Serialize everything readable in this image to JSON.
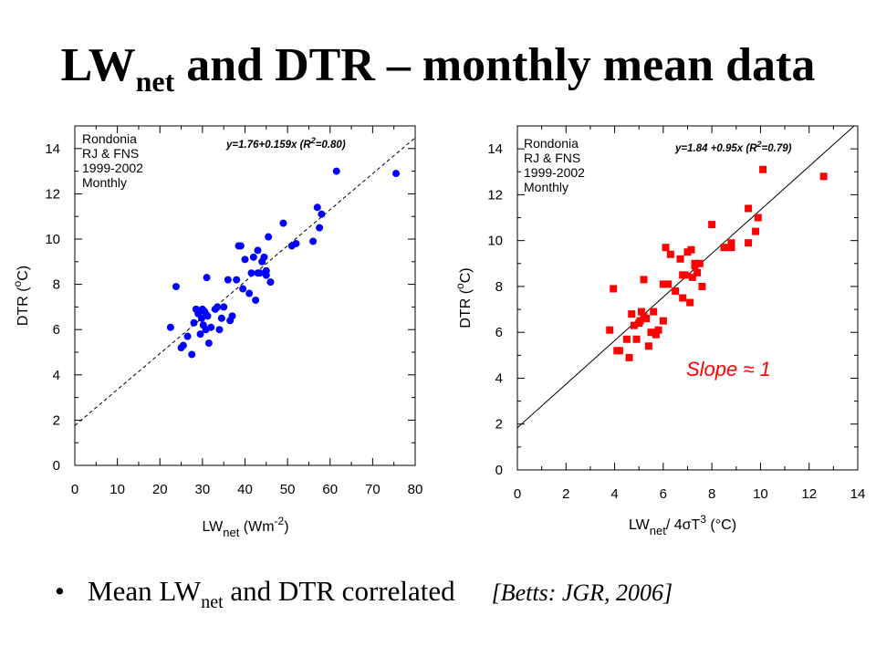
{
  "slide": {
    "title_main": "LW",
    "title_sub": "net",
    "title_rest": " and DTR – monthly mean data",
    "bullet_symbol": "•",
    "bullet_pre": "Mean LW",
    "bullet_sub": "net",
    "bullet_post": " and DTR correlated",
    "citation": "[Betts: JGR, 2006]"
  },
  "chart_data": [
    {
      "type": "scatter",
      "info_lines": [
        "Rondonia",
        "RJ & FNS",
        "1999-2002",
        "Monthly"
      ],
      "equation": "y=1.76+0.159x (R",
      "equation_sup": "2",
      "equation_tail": "=0.80)",
      "xlabel_main": "LW",
      "xlabel_sub": "net",
      "xlabel_rest": " (Wm",
      "xlabel_sup": "-2",
      "xlabel_end": ")",
      "ylabel_main": "DTR (",
      "ylabel_sup": "o",
      "ylabel_end": "C)",
      "xlim": [
        0,
        80
      ],
      "ylim": [
        0,
        15
      ],
      "xticks": [
        0,
        10,
        20,
        30,
        40,
        50,
        60,
        70,
        80
      ],
      "yticks": [
        0,
        2,
        4,
        6,
        8,
        10,
        12,
        14
      ],
      "marker": "circle",
      "color": "#0000ff",
      "fit": {
        "intercept": 1.76,
        "slope": 0.159,
        "style": "dashed"
      },
      "x": [
        22.5,
        23.8,
        25.0,
        25.5,
        26.5,
        27.5,
        28.0,
        28.5,
        29.0,
        29.5,
        29.8,
        30.0,
        30.2,
        30.5,
        30.8,
        31.0,
        31.2,
        31.5,
        32.0,
        33.0,
        33.5,
        34.0,
        34.5,
        35.0,
        36.0,
        36.5,
        37.0,
        38.0,
        38.5,
        39.0,
        39.5,
        40.0,
        41.0,
        41.5,
        42.0,
        42.5,
        43.0,
        43.0,
        43.5,
        44.0,
        44.5,
        45.0,
        45.0,
        45.5,
        46.0,
        49.0,
        51.0,
        52.0,
        56.0,
        57.0,
        57.5,
        58.0,
        61.5,
        75.5
      ],
      "y": [
        6.1,
        7.9,
        5.2,
        5.3,
        5.7,
        4.9,
        6.3,
        6.9,
        6.7,
        5.8,
        6.5,
        6.9,
        6.2,
        6.8,
        6.0,
        8.3,
        6.6,
        5.4,
        6.1,
        6.9,
        7.0,
        6.0,
        6.5,
        7.0,
        8.2,
        6.4,
        6.6,
        8.2,
        9.7,
        9.7,
        7.8,
        9.1,
        7.6,
        8.5,
        9.2,
        7.3,
        9.5,
        8.5,
        8.5,
        9.0,
        9.2,
        8.6,
        8.4,
        10.1,
        8.1,
        10.7,
        9.7,
        9.8,
        9.9,
        11.4,
        10.5,
        11.1,
        13.0,
        12.9
      ]
    },
    {
      "type": "scatter",
      "info_lines": [
        "Rondonia",
        "RJ & FNS",
        "1999-2002",
        "Monthly"
      ],
      "equation": "y=1.84 +0.95x (R",
      "equation_sup": "2",
      "equation_tail": "=0.79)",
      "xlabel_main": "LW",
      "xlabel_sub": "net",
      "xlabel_rest": "/ 4σT",
      "xlabel_sup": "3",
      "xlabel_end": " (°C)",
      "ylabel_main": "DTR (",
      "ylabel_sup": "o",
      "ylabel_end": "C)",
      "xlim": [
        0,
        14
      ],
      "ylim": [
        0,
        15
      ],
      "xticks": [
        0,
        2,
        4,
        6,
        8,
        10,
        12,
        14
      ],
      "yticks": [
        0,
        2,
        4,
        6,
        8,
        10,
        12,
        14
      ],
      "marker": "square",
      "color": "#ff0000",
      "fit": {
        "intercept": 1.84,
        "slope": 0.95,
        "style": "solid"
      },
      "annotation": "Slope ≈ 1",
      "x": [
        3.8,
        3.95,
        4.1,
        4.2,
        4.5,
        4.6,
        4.7,
        4.8,
        4.9,
        5.0,
        5.05,
        5.1,
        5.2,
        5.2,
        5.3,
        5.4,
        5.5,
        5.6,
        5.7,
        5.8,
        6.0,
        6.0,
        6.1,
        6.2,
        6.3,
        6.5,
        6.7,
        6.8,
        6.8,
        6.9,
        7.0,
        7.1,
        7.15,
        7.2,
        7.3,
        7.3,
        7.4,
        7.5,
        7.6,
        8.0,
        8.5,
        8.8,
        8.8,
        9.5,
        9.5,
        9.8,
        9.9,
        10.1,
        12.6
      ],
      "y": [
        6.1,
        7.9,
        5.2,
        5.2,
        5.7,
        4.9,
        6.8,
        6.3,
        5.7,
        6.4,
        6.5,
        6.9,
        6.7,
        8.3,
        6.6,
        5.4,
        6.0,
        6.9,
        5.9,
        6.1,
        8.1,
        6.5,
        9.7,
        8.1,
        9.4,
        7.8,
        9.2,
        7.5,
        8.5,
        8.5,
        9.5,
        7.3,
        9.6,
        8.4,
        8.9,
        9.0,
        8.6,
        9.0,
        8.0,
        10.7,
        9.7,
        9.7,
        9.9,
        11.4,
        9.9,
        10.4,
        11.0,
        13.1,
        12.8
      ]
    }
  ]
}
